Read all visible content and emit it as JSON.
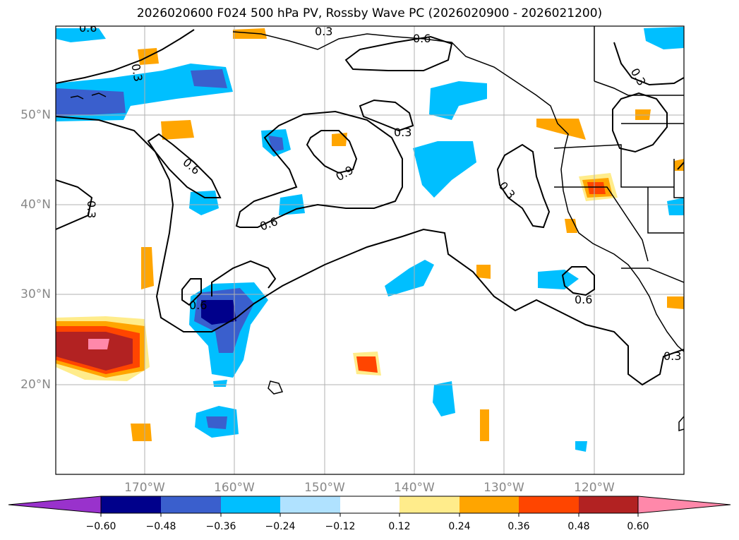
{
  "title": "2026020600 F024 500 hPa PV, Rossby Wave PC (2026020900 - 2026021200)",
  "map": {
    "lat_labels": [
      {
        "text": "50°N",
        "value": 50
      },
      {
        "text": "40°N",
        "value": 40
      },
      {
        "text": "30°N",
        "value": 30
      },
      {
        "text": "20°N",
        "value": 20
      }
    ],
    "lon_labels": [
      {
        "text": "170°W",
        "value": -170
      },
      {
        "text": "160°W",
        "value": -160
      },
      {
        "text": "150°W",
        "value": -150
      },
      {
        "text": "140°W",
        "value": -140
      },
      {
        "text": "130°W",
        "value": -130
      },
      {
        "text": "120°W",
        "value": -120
      }
    ],
    "contour_labels": [
      "0.3",
      "0.6",
      "0.6",
      "0.3",
      "0.3",
      "0.6",
      "0.3",
      "0.9",
      "0.6",
      "0.3",
      "0.3",
      "0.6",
      "0.6",
      "0.3"
    ]
  },
  "colorbar": {
    "ticks": [
      "−0.60",
      "−0.48",
      "−0.36",
      "−0.24",
      "−0.12",
      "0.12",
      "0.24",
      "0.36",
      "0.48",
      "0.60"
    ],
    "colors": [
      "#9932cc",
      "#00008b",
      "#3a5fcd",
      "#00bfff",
      "#b0e2ff",
      "#ffffff",
      "#ffec8b",
      "#ffa500",
      "#ff4500",
      "#b22222",
      "#ff88aa"
    ]
  }
}
